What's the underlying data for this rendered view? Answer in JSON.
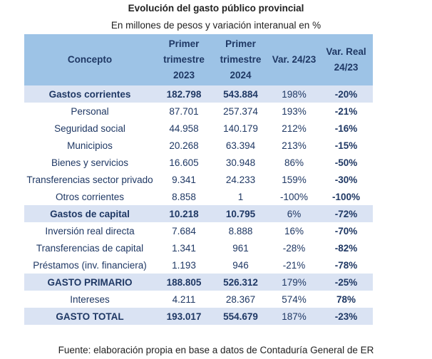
{
  "title": "Evolución del gasto público provincial",
  "subtitle": "En millones de pesos y variación interanual en %",
  "colors": {
    "header_bg": "#9dc3e6",
    "band_bg": "#dae3f3",
    "text": "#1f3864"
  },
  "table": {
    "headers": [
      [
        "Concepto"
      ],
      [
        "Primer",
        "trimestre",
        "2023"
      ],
      [
        "Primer",
        "trimestre",
        "2024"
      ],
      [
        "Var. 24/23"
      ],
      [
        "Var. Real",
        "24/23"
      ]
    ],
    "rows": [
      {
        "band": true,
        "cells": [
          "Gastos corrientes",
          "182.798",
          "543.884",
          "198%",
          "-20%"
        ]
      },
      {
        "band": false,
        "cells": [
          "Personal",
          "87.701",
          "257.374",
          "193%",
          "-21%"
        ]
      },
      {
        "band": false,
        "cells": [
          "Seguridad social",
          "44.958",
          "140.179",
          "212%",
          "-16%"
        ]
      },
      {
        "band": false,
        "cells": [
          "Municipios",
          "20.268",
          "63.394",
          "213%",
          "-15%"
        ]
      },
      {
        "band": false,
        "cells": [
          "Bienes y servicios",
          "16.605",
          "30.948",
          "86%",
          "-50%"
        ]
      },
      {
        "band": false,
        "cells": [
          "Transferencias sector privado",
          "9.341",
          "24.233",
          "159%",
          "-30%"
        ]
      },
      {
        "band": false,
        "cells": [
          "Otros corrientes",
          "8.858",
          "1",
          "-100%",
          "-100%"
        ]
      },
      {
        "band": true,
        "cells": [
          "Gastos de capital",
          "10.218",
          "10.795",
          "6%",
          "-72%"
        ]
      },
      {
        "band": false,
        "cells": [
          "Inversión real directa",
          "7.684",
          "8.888",
          "16%",
          "-70%"
        ]
      },
      {
        "band": false,
        "cells": [
          "Transferencias de capital",
          "1.341",
          "961",
          "-28%",
          "-82%"
        ]
      },
      {
        "band": false,
        "cells": [
          "Préstamos (inv. financiera)",
          "1.193",
          "946",
          "-21%",
          "-78%"
        ]
      },
      {
        "band": true,
        "cells": [
          "GASTO PRIMARIO",
          "188.805",
          "526.312",
          "179%",
          "-25%"
        ]
      },
      {
        "band": false,
        "cells": [
          "Intereses",
          "4.211",
          "28.367",
          "574%",
          "78%"
        ]
      },
      {
        "band": true,
        "cells": [
          "GASTO TOTAL",
          "193.017",
          "554.679",
          "187%",
          "-23%"
        ]
      }
    ]
  },
  "source": "Fuente: elaboración propia en base a datos de Contaduría General de ER"
}
